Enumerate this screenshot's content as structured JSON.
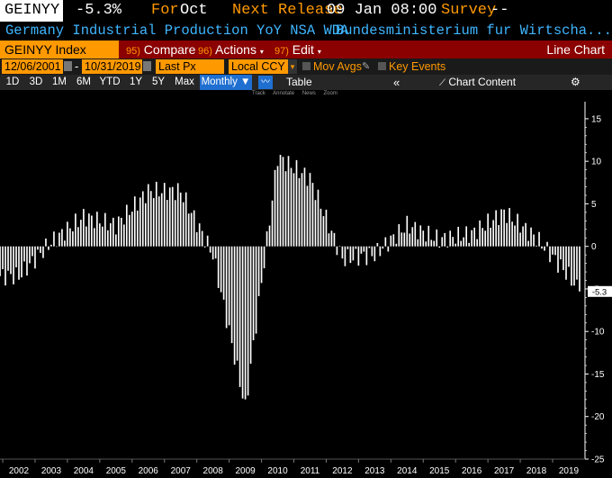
{
  "header": {
    "ticker": "GEINYY",
    "last_value": "-5.3%",
    "for_label": "For",
    "for_value": "Oct",
    "next_release_label": "Next Release",
    "next_release_value": "09 Jan 08:00",
    "survey_label": "Survey",
    "survey_value": "--",
    "description": "Germany Industrial Production YoY NSA WDA",
    "source": "Bundesministerium fur Wirtscha..."
  },
  "menubar": {
    "index_label": "GEINYY Index",
    "compare_num": "95)",
    "compare_label": "Compare",
    "actions_num": "96)",
    "actions_label": "Actions",
    "edit_num": "97)",
    "edit_label": "Edit",
    "chart_type": "Line Chart"
  },
  "controls": {
    "start_date": "12/06/2001",
    "end_date": "10/31/2019",
    "field": "Last Px",
    "currency": "Local CCY",
    "mov_avgs": "Mov Avgs",
    "key_events": "Key Events"
  },
  "periods": [
    "1D",
    "3D",
    "1M",
    "6M",
    "YTD",
    "1Y",
    "5Y",
    "Max"
  ],
  "frequency": "Monthly",
  "table_label": "Table",
  "chart_content_label": "Chart Content",
  "tiny_tools": [
    "Track",
    "Annotate",
    "News",
    "Zoom"
  ],
  "colors": {
    "orange": "#ff9900",
    "blue_text": "#3fb6ff",
    "menu_bg": "#8b0000",
    "bars": "#ffffff",
    "selected": "#1f6fd1"
  },
  "icons": [
    "calendar-icon",
    "checkbox-icon",
    "pencil-icon",
    "line-chart-icon",
    "chevron-left-icon",
    "chart-content-icon",
    "gear-icon",
    "dropdown-icon"
  ],
  "chart_data": {
    "type": "bar",
    "title": "",
    "ylim": [
      -25,
      17
    ],
    "yticks": [
      15,
      10,
      5,
      0,
      -5,
      -10,
      -15,
      -20,
      -25
    ],
    "xlabels": [
      "2002",
      "2003",
      "2004",
      "2005",
      "2006",
      "2007",
      "2008",
      "2009",
      "2010",
      "2011",
      "2012",
      "2013",
      "2014",
      "2015",
      "2016",
      "2017",
      "2018",
      "2019"
    ],
    "last_value_label": "-5.3",
    "annual_points": [
      {
        "year": 2002,
        "value": -3.5
      },
      {
        "year": 2003,
        "value": 0.5
      },
      {
        "year": 2004,
        "value": 3.5
      },
      {
        "year": 2005,
        "value": 2.5
      },
      {
        "year": 2006,
        "value": 6.5
      },
      {
        "year": 2007,
        "value": 6.5
      },
      {
        "year": 2008,
        "value": -1.0
      },
      {
        "year": 2009,
        "value": -19.0
      },
      {
        "year": 2010,
        "value": 10.5
      },
      {
        "year": 2011,
        "value": 8.0
      },
      {
        "year": 2012,
        "value": -1.5
      },
      {
        "year": 2013,
        "value": -1.0
      },
      {
        "year": 2014,
        "value": 2.5
      },
      {
        "year": 2015,
        "value": 0.8
      },
      {
        "year": 2016,
        "value": 1.5
      },
      {
        "year": 2017,
        "value": 4.0
      },
      {
        "year": 2018,
        "value": 1.0
      },
      {
        "year": 2019,
        "value": -3.5
      }
    ],
    "last_value": -5.3
  }
}
